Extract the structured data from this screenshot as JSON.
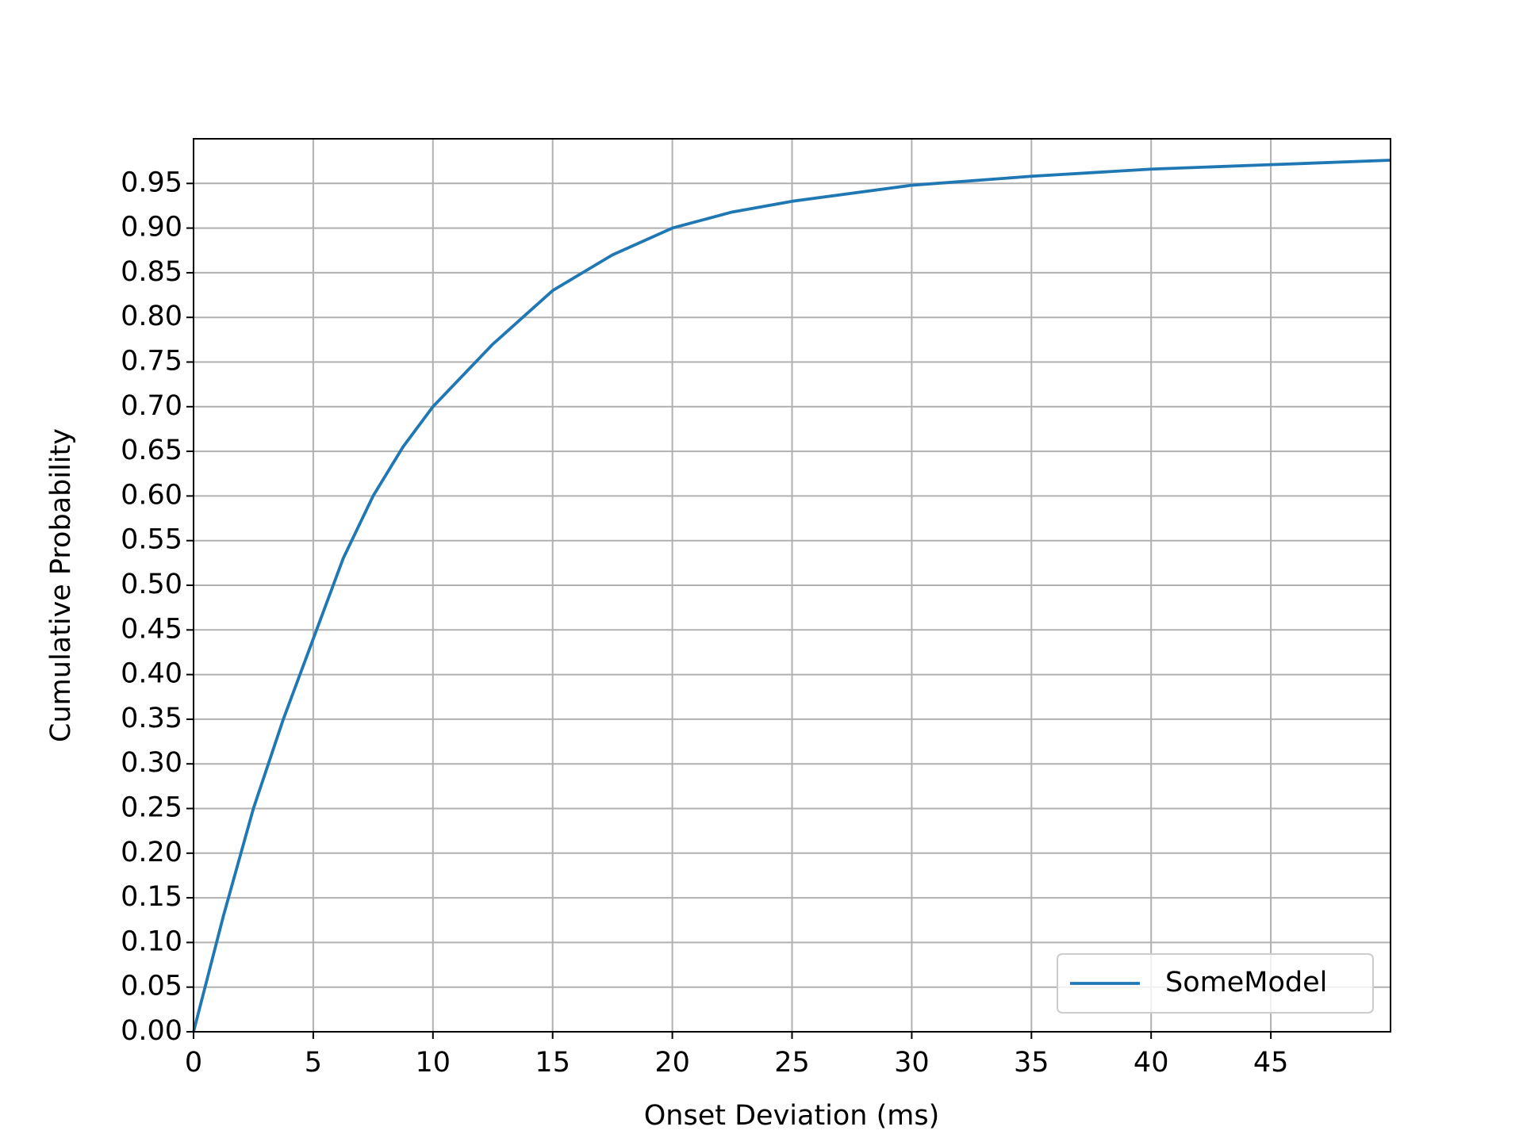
{
  "chart_data": {
    "type": "line",
    "xlabel": "Onset Deviation (ms)",
    "ylabel": "Cumulative Probability",
    "x": [
      0,
      1.25,
      2.5,
      3.75,
      5,
      6.25,
      7.5,
      8.75,
      10,
      12.5,
      15,
      17.5,
      20,
      22.5,
      25,
      30,
      35,
      40,
      45,
      50
    ],
    "series": [
      {
        "name": "SomeModel",
        "color": "#1f77b4",
        "values": [
          0,
          0.13,
          0.25,
          0.35,
          0.44,
          0.53,
          0.6,
          0.655,
          0.7,
          0.77,
          0.83,
          0.87,
          0.9,
          0.918,
          0.93,
          0.948,
          0.958,
          0.966,
          0.971,
          0.976
        ]
      }
    ],
    "xlim": [
      0,
      50
    ],
    "ylim": [
      0,
      1
    ],
    "xticks": [
      0,
      5,
      10,
      15,
      20,
      25,
      30,
      35,
      40,
      45
    ],
    "yticks": [
      {
        "value": 0,
        "label": "0.00"
      },
      {
        "value": 0.05,
        "label": "0.05"
      },
      {
        "value": 0.1,
        "label": "0.10"
      },
      {
        "value": 0.15,
        "label": "0.15"
      },
      {
        "value": 0.2,
        "label": "0.20"
      },
      {
        "value": 0.25,
        "label": "0.25"
      },
      {
        "value": 0.3,
        "label": "0.30"
      },
      {
        "value": 0.35,
        "label": "0.35"
      },
      {
        "value": 0.4,
        "label": "0.40"
      },
      {
        "value": 0.45,
        "label": "0.45"
      },
      {
        "value": 0.5,
        "label": "0.50"
      },
      {
        "value": 0.55,
        "label": "0.55"
      },
      {
        "value": 0.6,
        "label": "0.60"
      },
      {
        "value": 0.65,
        "label": "0.65"
      },
      {
        "value": 0.7,
        "label": "0.70"
      },
      {
        "value": 0.75,
        "label": "0.75"
      },
      {
        "value": 0.8,
        "label": "0.80"
      },
      {
        "value": 0.85,
        "label": "0.85"
      },
      {
        "value": 0.9,
        "label": "0.90"
      },
      {
        "value": 0.95,
        "label": "0.95"
      }
    ],
    "grid": true,
    "legend": "lower right"
  }
}
